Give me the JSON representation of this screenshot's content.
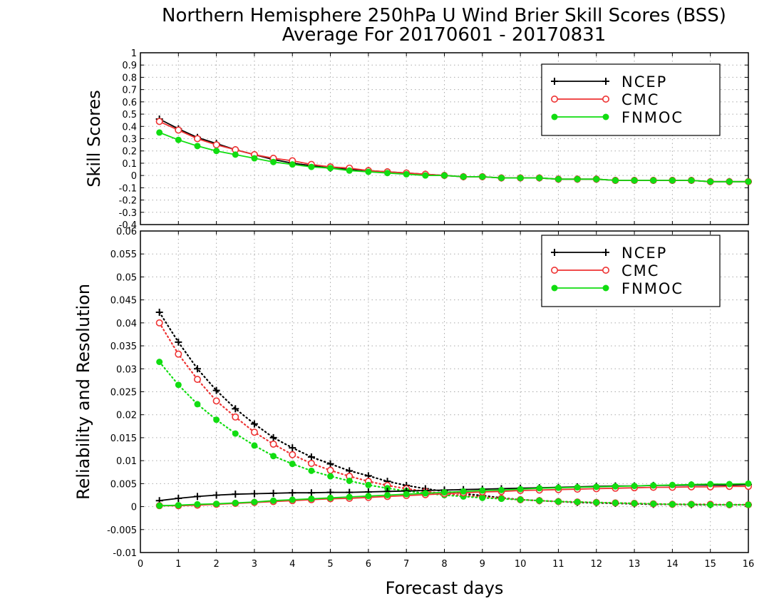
{
  "title_line1": "Northern Hemisphere 250hPa U Wind Brier Skill Scores (BSS)",
  "title_line2": "Average For 20170601 - 20170831",
  "colors": {
    "ncep": "#000000",
    "cmc": "#ee3333",
    "fnmoc": "#11dd11",
    "grid": "#aaaaaa"
  },
  "chart_data": [
    {
      "type": "line",
      "ylabel": "Skill Scores",
      "xlim": [
        0,
        16
      ],
      "ylim": [
        -0.4,
        1
      ],
      "yticks": [
        "-0.4",
        "-0.3",
        "-0.2",
        "-0.1",
        "0",
        "0.1",
        "0.2",
        "0.3",
        "0.4",
        "0.5",
        "0.6",
        "0.7",
        "0.8",
        "0.9",
        "1"
      ],
      "grid": true,
      "legend_position": "top-right",
      "x": [
        0.5,
        1,
        1.5,
        2,
        2.5,
        3,
        3.5,
        4,
        4.5,
        5,
        5.5,
        6,
        6.5,
        7,
        7.5,
        8,
        8.5,
        9,
        9.5,
        10,
        10.5,
        11,
        11.5,
        12,
        12.5,
        13,
        13.5,
        14,
        14.5,
        15,
        15.5,
        16
      ],
      "series": [
        {
          "name": "NCEP",
          "marker": "plus",
          "style": "solid",
          "values": [
            0.46,
            0.38,
            0.31,
            0.26,
            0.21,
            0.17,
            0.13,
            0.1,
            0.08,
            0.06,
            0.05,
            0.04,
            0.03,
            0.02,
            0.01,
            0.0,
            -0.01,
            -0.01,
            -0.02,
            -0.02,
            -0.02,
            -0.03,
            -0.03,
            -0.03,
            -0.04,
            -0.04,
            -0.04,
            -0.04,
            -0.04,
            -0.05,
            -0.05,
            -0.05
          ]
        },
        {
          "name": "CMC",
          "marker": "open-circle",
          "style": "solid",
          "values": [
            0.44,
            0.37,
            0.3,
            0.25,
            0.21,
            0.17,
            0.14,
            0.12,
            0.09,
            0.07,
            0.06,
            0.04,
            0.03,
            0.02,
            0.01,
            0.0,
            -0.01,
            -0.01,
            -0.02,
            -0.02,
            -0.02,
            -0.03,
            -0.03,
            -0.03,
            -0.04,
            -0.04,
            -0.04,
            -0.04,
            -0.04,
            -0.05,
            -0.05,
            -0.05
          ]
        },
        {
          "name": "FNMOC",
          "marker": "filled-circle",
          "style": "solid",
          "values": [
            0.35,
            0.29,
            0.24,
            0.2,
            0.17,
            0.14,
            0.11,
            0.09,
            0.07,
            0.06,
            0.04,
            0.03,
            0.02,
            0.01,
            0.0,
            0.0,
            -0.01,
            -0.01,
            -0.02,
            -0.02,
            -0.02,
            -0.03,
            -0.03,
            -0.03,
            -0.04,
            -0.04,
            -0.04,
            -0.04,
            -0.04,
            -0.05,
            -0.05,
            -0.05
          ]
        }
      ]
    },
    {
      "type": "line",
      "xlabel": "Forecast days",
      "ylabel": "Reliability and Resolution",
      "xlim": [
        0,
        16
      ],
      "ylim": [
        -0.01,
        0.06
      ],
      "xticks": [
        "0",
        "1",
        "2",
        "3",
        "4",
        "5",
        "6",
        "7",
        "8",
        "9",
        "10",
        "11",
        "12",
        "13",
        "14",
        "15",
        "16"
      ],
      "yticks": [
        "-0.01",
        "-0.005",
        "0",
        "0.005",
        "0.01",
        "0.015",
        "0.02",
        "0.025",
        "0.03",
        "0.035",
        "0.04",
        "0.045",
        "0.05",
        "0.055",
        "0.06"
      ],
      "grid": true,
      "legend_position": "top-right",
      "x": [
        0.5,
        1,
        1.5,
        2,
        2.5,
        3,
        3.5,
        4,
        4.5,
        5,
        5.5,
        6,
        6.5,
        7,
        7.5,
        8,
        8.5,
        9,
        9.5,
        10,
        10.5,
        11,
        11.5,
        12,
        12.5,
        13,
        13.5,
        14,
        14.5,
        15,
        15.5,
        16
      ],
      "series": [
        {
          "name": "NCEP",
          "marker": "plus",
          "style": "dotted",
          "values": [
            0.0423,
            0.0358,
            0.03,
            0.0253,
            0.0213,
            0.018,
            0.015,
            0.0128,
            0.0108,
            0.0093,
            0.0078,
            0.0067,
            0.0055,
            0.0046,
            0.0039,
            0.0033,
            0.0028,
            0.0024,
            0.0019,
            0.0015,
            0.0013,
            0.0011,
            0.0009,
            0.0008,
            0.0007,
            0.0006,
            0.0005,
            0.0005,
            0.0004,
            0.0004,
            0.0004,
            0.0004
          ]
        },
        {
          "name": "CMC",
          "marker": "open-circle",
          "style": "dotted",
          "values": [
            0.04,
            0.0332,
            0.0277,
            0.023,
            0.0195,
            0.0162,
            0.0136,
            0.0113,
            0.0094,
            0.0079,
            0.0066,
            0.0055,
            0.0046,
            0.0039,
            0.0033,
            0.0028,
            0.0024,
            0.0021,
            0.0018,
            0.0015,
            0.0013,
            0.0011,
            0.001,
            0.0009,
            0.0008,
            0.0007,
            0.0006,
            0.0005,
            0.0005,
            0.0005,
            0.0004,
            0.0004
          ]
        },
        {
          "name": "FNMOC",
          "marker": "filled-circle",
          "style": "dotted",
          "values": [
            0.0315,
            0.0265,
            0.0223,
            0.0189,
            0.0159,
            0.0133,
            0.011,
            0.0093,
            0.0078,
            0.0066,
            0.0056,
            0.0047,
            0.004,
            0.0034,
            0.0029,
            0.0025,
            0.0022,
            0.0019,
            0.0017,
            0.0015,
            0.0013,
            0.0011,
            0.001,
            0.0009,
            0.0008,
            0.0007,
            0.0006,
            0.0005,
            0.0005,
            0.0004,
            0.0004,
            0.0004
          ]
        },
        {
          "name": "NCEP",
          "marker": "plus",
          "style": "solid",
          "values": [
            0.0013,
            0.0018,
            0.0022,
            0.0025,
            0.0027,
            0.0028,
            0.0029,
            0.003,
            0.003,
            0.0031,
            0.0031,
            0.0032,
            0.0033,
            0.0034,
            0.0035,
            0.0036,
            0.0037,
            0.0038,
            0.0039,
            0.004,
            0.0041,
            0.0042,
            0.0043,
            0.0044,
            0.0045,
            0.0045,
            0.0046,
            0.0046,
            0.0047,
            0.0047,
            0.0047,
            0.0048
          ]
        },
        {
          "name": "CMC",
          "marker": "open-circle",
          "style": "solid",
          "values": [
            0.0002,
            0.0002,
            0.0003,
            0.0005,
            0.0007,
            0.0009,
            0.0011,
            0.0013,
            0.0015,
            0.0017,
            0.0018,
            0.002,
            0.0022,
            0.0024,
            0.0026,
            0.0028,
            0.003,
            0.0032,
            0.0033,
            0.0035,
            0.0036,
            0.0037,
            0.0038,
            0.0039,
            0.004,
            0.0041,
            0.0042,
            0.0042,
            0.0043,
            0.0043,
            0.0044,
            0.0044
          ]
        },
        {
          "name": "FNMOC",
          "marker": "filled-circle",
          "style": "solid",
          "values": [
            0.0002,
            0.0003,
            0.0005,
            0.0006,
            0.0008,
            0.001,
            0.0013,
            0.0015,
            0.0017,
            0.0019,
            0.0021,
            0.0023,
            0.0025,
            0.0027,
            0.0029,
            0.0031,
            0.0033,
            0.0035,
            0.0036,
            0.0038,
            0.004,
            0.0041,
            0.0042,
            0.0043,
            0.0044,
            0.0045,
            0.0046,
            0.0047,
            0.0048,
            0.0049,
            0.0049,
            0.005
          ]
        }
      ]
    }
  ]
}
